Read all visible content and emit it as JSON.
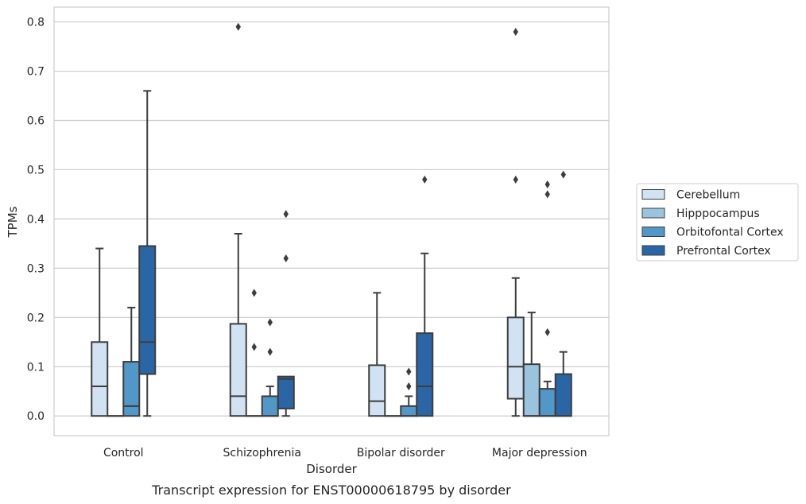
{
  "chart_data": {
    "type": "boxplot",
    "caption": "Transcript expression for ENST00000618795 by disorder",
    "xlabel": "Disorder",
    "ylabel": "TPMs",
    "ylim": [
      -0.04,
      0.83
    ],
    "yticks": [
      0.0,
      0.1,
      0.2,
      0.3,
      0.4,
      0.5,
      0.6,
      0.7,
      0.8
    ],
    "ytick_labels": [
      "0.0",
      "0.1",
      "0.2",
      "0.3",
      "0.4",
      "0.5",
      "0.6",
      "0.7",
      "0.8"
    ],
    "grid": "horizontal",
    "legend_position": "right",
    "categories": [
      "Control",
      "Schizophrenia",
      "Bipolar disorder",
      "Major depression"
    ],
    "series": [
      {
        "name": "Cerebellum",
        "color": "#d1e2f2",
        "boxes": [
          {
            "whislo": 0.0,
            "q1": 0.0,
            "med": 0.06,
            "q3": 0.15,
            "whishi": 0.34,
            "fliers": []
          },
          {
            "whislo": 0.0,
            "q1": 0.0,
            "med": 0.04,
            "q3": 0.187,
            "whishi": 0.37,
            "fliers": [
              0.79
            ]
          },
          {
            "whislo": 0.0,
            "q1": 0.0,
            "med": 0.03,
            "q3": 0.103,
            "whishi": 0.25,
            "fliers": []
          },
          {
            "whislo": 0.0,
            "q1": 0.035,
            "med": 0.1,
            "q3": 0.2,
            "whishi": 0.28,
            "fliers": [
              0.48,
              0.78
            ]
          }
        ]
      },
      {
        "name": "Hipppocampus",
        "color": "#9ac4de",
        "boxes": [
          {
            "whislo": 0.0,
            "q1": 0.0,
            "med": 0.0,
            "q3": 0.0,
            "whishi": 0.0,
            "fliers": []
          },
          {
            "whislo": 0.0,
            "q1": 0.0,
            "med": 0.0,
            "q3": 0.0,
            "whishi": 0.0,
            "fliers": [
              0.14,
              0.25
            ]
          },
          {
            "whislo": 0.0,
            "q1": 0.0,
            "med": 0.0,
            "q3": 0.0,
            "whishi": 0.0,
            "fliers": []
          },
          {
            "whislo": 0.0,
            "q1": 0.0,
            "med": 0.0,
            "q3": 0.105,
            "whishi": 0.21,
            "fliers": []
          }
        ]
      },
      {
        "name": "Orbitofontal Cortex",
        "color": "#5197c8",
        "boxes": [
          {
            "whislo": 0.0,
            "q1": 0.0,
            "med": 0.02,
            "q3": 0.11,
            "whishi": 0.22,
            "fliers": []
          },
          {
            "whislo": 0.0,
            "q1": 0.0,
            "med": 0.0,
            "q3": 0.04,
            "whishi": 0.06,
            "fliers": [
              0.13,
              0.19
            ]
          },
          {
            "whislo": 0.0,
            "q1": 0.0,
            "med": 0.0,
            "q3": 0.02,
            "whishi": 0.04,
            "fliers": [
              0.06,
              0.09
            ]
          },
          {
            "whislo": 0.0,
            "q1": 0.0,
            "med": 0.0,
            "q3": 0.055,
            "whishi": 0.07,
            "fliers": [
              0.17,
              0.45,
              0.47
            ]
          }
        ]
      },
      {
        "name": "Prefrontal Cortex",
        "color": "#2a66a6",
        "boxes": [
          {
            "whislo": 0.0,
            "q1": 0.085,
            "med": 0.15,
            "q3": 0.345,
            "whishi": 0.66,
            "fliers": []
          },
          {
            "whislo": 0.0,
            "q1": 0.015,
            "med": 0.075,
            "q3": 0.08,
            "whishi": 0.08,
            "fliers": [
              0.32,
              0.41
            ]
          },
          {
            "whislo": 0.0,
            "q1": 0.0,
            "med": 0.06,
            "q3": 0.168,
            "whishi": 0.33,
            "fliers": [
              0.48
            ]
          },
          {
            "whislo": 0.0,
            "q1": 0.0,
            "med": 0.0,
            "q3": 0.085,
            "whishi": 0.13,
            "fliers": [
              0.49
            ]
          }
        ]
      }
    ]
  }
}
